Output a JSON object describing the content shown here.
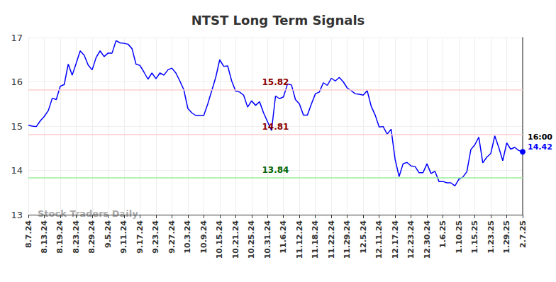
{
  "chart_data": {
    "type": "line",
    "title": "NTST Long Term Signals",
    "watermark": "Stock Traders Daily",
    "categories": [
      "8.7.24",
      null,
      null,
      null,
      "8.13.24",
      null,
      null,
      null,
      "8.19.24",
      null,
      null,
      null,
      "8.23.24",
      null,
      null,
      null,
      "8.29.24",
      null,
      null,
      null,
      "9.5.24",
      null,
      null,
      null,
      "9.11.24",
      null,
      null,
      null,
      "9.17.24",
      null,
      null,
      null,
      "9.23.24",
      null,
      null,
      null,
      "9.27.24",
      null,
      null,
      null,
      "10.3.24",
      null,
      null,
      null,
      "10.9.24",
      null,
      null,
      null,
      "10.15.24",
      null,
      null,
      null,
      "10.21.24",
      null,
      null,
      null,
      "10.25.24",
      null,
      null,
      null,
      "10.31.24",
      null,
      null,
      null,
      "11.6.24",
      null,
      null,
      null,
      "11.12.24",
      null,
      null,
      null,
      "11.18.24",
      null,
      null,
      null,
      "11.22.24",
      null,
      null,
      null,
      "11.29.24",
      null,
      null,
      null,
      "12.5.24",
      null,
      null,
      null,
      "12.11.24",
      null,
      null,
      null,
      "12.17.24",
      null,
      null,
      null,
      "12.23.24",
      null,
      null,
      null,
      "12.30.24",
      null,
      null,
      null,
      "1.6.25",
      null,
      null,
      null,
      "1.10.25",
      null,
      null,
      null,
      "1.15.25",
      null,
      null,
      null,
      "1.23.25",
      null,
      null,
      null,
      "1.29.25",
      null,
      null,
      null,
      "2.7.25"
    ],
    "values": [
      15.02,
      15.0,
      14.99,
      15.12,
      15.22,
      15.35,
      15.63,
      15.6,
      15.9,
      15.94,
      16.4,
      16.15,
      16.42,
      16.7,
      16.6,
      16.38,
      16.27,
      16.55,
      16.7,
      16.57,
      16.65,
      16.65,
      16.93,
      16.88,
      16.87,
      16.85,
      16.75,
      16.4,
      16.37,
      16.22,
      16.06,
      16.2,
      16.07,
      16.2,
      16.15,
      16.27,
      16.31,
      16.2,
      16.02,
      15.82,
      15.4,
      15.3,
      15.24,
      15.24,
      15.24,
      15.5,
      15.8,
      16.1,
      16.5,
      16.35,
      16.36,
      16.02,
      15.79,
      15.77,
      15.7,
      15.43,
      15.57,
      15.47,
      15.55,
      15.3,
      15.1,
      14.9,
      15.68,
      15.62,
      15.66,
      15.95,
      15.93,
      15.6,
      15.5,
      15.25,
      15.25,
      15.5,
      15.73,
      15.77,
      15.98,
      15.92,
      16.08,
      16.02,
      16.1,
      16.0,
      15.86,
      15.8,
      15.73,
      15.72,
      15.7,
      15.8,
      15.45,
      15.25,
      14.98,
      14.99,
      14.82,
      14.93,
      14.25,
      13.86,
      14.15,
      14.18,
      14.1,
      14.09,
      13.95,
      13.95,
      14.15,
      13.93,
      13.98,
      13.75,
      13.75,
      13.72,
      13.72,
      13.65,
      13.8,
      13.85,
      13.97,
      14.47,
      14.58,
      14.75,
      14.17,
      14.3,
      14.38,
      14.78,
      14.52,
      14.22,
      14.62,
      14.48,
      14.52,
      14.45,
      14.42
    ],
    "color": "#0000ff",
    "end_label": "16:00",
    "levels": [
      {
        "value": 15.82,
        "color": "#ffcccc",
        "label_color": "#8b0000"
      },
      {
        "value": 14.81,
        "color": "#ffcccc",
        "label_color": "#8b0000"
      },
      {
        "value": 13.84,
        "color": "#99ee99",
        "label_color": "#006400"
      }
    ],
    "ylim": [
      13,
      17
    ],
    "yticks": [
      13,
      14,
      15,
      16,
      17
    ],
    "grid": true
  }
}
